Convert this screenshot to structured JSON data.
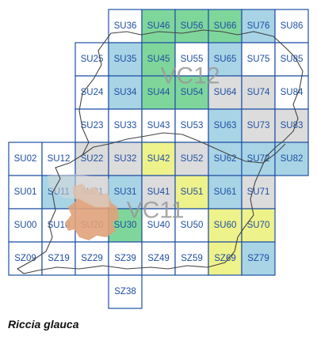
{
  "species_name": "Riccia glauca",
  "vice_counties": [
    "VC12",
    "VC11"
  ],
  "colors": {
    "grid_line": "#1f4fa3",
    "label": "#1f4fa3",
    "recent_green": "#7fd69b",
    "blue": "#a8d4e6",
    "yellow": "#eef28a",
    "grey": "#dcdcdc",
    "white": "#ffffff",
    "records_orange": "#e0a27a",
    "boundary": "#444444"
  },
  "legend": [],
  "squares": [
    {
      "code": "SU36",
      "fill": "white"
    },
    {
      "code": "SU46",
      "fill": "recent_green"
    },
    {
      "code": "SU56",
      "fill": "recent_green"
    },
    {
      "code": "SU66",
      "fill": "recent_green"
    },
    {
      "code": "SU76",
      "fill": "blue"
    },
    {
      "code": "SU86",
      "fill": "white"
    },
    {
      "code": "SU25",
      "fill": "white"
    },
    {
      "code": "SU35",
      "fill": "blue"
    },
    {
      "code": "SU45",
      "fill": "recent_green"
    },
    {
      "code": "SU55",
      "fill": "white"
    },
    {
      "code": "SU65",
      "fill": "blue"
    },
    {
      "code": "SU75",
      "fill": "white"
    },
    {
      "code": "SU85",
      "fill": "white"
    },
    {
      "code": "SU24",
      "fill": "white"
    },
    {
      "code": "SU34",
      "fill": "blue"
    },
    {
      "code": "SU44",
      "fill": "recent_green"
    },
    {
      "code": "SU54",
      "fill": "recent_green"
    },
    {
      "code": "SU64",
      "fill": "grey"
    },
    {
      "code": "SU74",
      "fill": "grey"
    },
    {
      "code": "SU84",
      "fill": "white"
    },
    {
      "code": "SU23",
      "fill": "white"
    },
    {
      "code": "SU33",
      "fill": "white"
    },
    {
      "code": "SU43",
      "fill": "white"
    },
    {
      "code": "SU53",
      "fill": "white"
    },
    {
      "code": "SU63",
      "fill": "blue"
    },
    {
      "code": "SU73",
      "fill": "grey"
    },
    {
      "code": "SU83",
      "fill": "grey"
    },
    {
      "code": "SU02",
      "fill": "white"
    },
    {
      "code": "SU12",
      "fill": "white"
    },
    {
      "code": "SU22",
      "fill": "grey"
    },
    {
      "code": "SU32",
      "fill": "grey"
    },
    {
      "code": "SU42",
      "fill": "yellow"
    },
    {
      "code": "SU52",
      "fill": "grey"
    },
    {
      "code": "SU62",
      "fill": "blue"
    },
    {
      "code": "SU72",
      "fill": "blue"
    },
    {
      "code": "SU82",
      "fill": "blue"
    },
    {
      "code": "SU01",
      "fill": "white"
    },
    {
      "code": "SU11",
      "fill": "blue"
    },
    {
      "code": "SU21",
      "fill": "grey"
    },
    {
      "code": "SU31",
      "fill": "blue"
    },
    {
      "code": "SU41",
      "fill": "grey"
    },
    {
      "code": "SU51",
      "fill": "yellow"
    },
    {
      "code": "SU61",
      "fill": "blue"
    },
    {
      "code": "SU71",
      "fill": "grey"
    },
    {
      "code": "SU00",
      "fill": "white"
    },
    {
      "code": "SU10",
      "fill": "white"
    },
    {
      "code": "SU20",
      "fill": "white"
    },
    {
      "code": "SU30",
      "fill": "recent_green"
    },
    {
      "code": "SU40",
      "fill": "white"
    },
    {
      "code": "SU50",
      "fill": "white"
    },
    {
      "code": "SU60",
      "fill": "yellow"
    },
    {
      "code": "SU70",
      "fill": "yellow"
    },
    {
      "code": "SZ09",
      "fill": "white"
    },
    {
      "code": "SZ19",
      "fill": "white"
    },
    {
      "code": "SZ29",
      "fill": "white"
    },
    {
      "code": "SZ39",
      "fill": "white"
    },
    {
      "code": "SZ49",
      "fill": "white"
    },
    {
      "code": "SZ59",
      "fill": "white"
    },
    {
      "code": "SZ69",
      "fill": "yellow"
    },
    {
      "code": "SZ79",
      "fill": "blue"
    },
    {
      "code": "SZ38",
      "fill": "white"
    }
  ]
}
